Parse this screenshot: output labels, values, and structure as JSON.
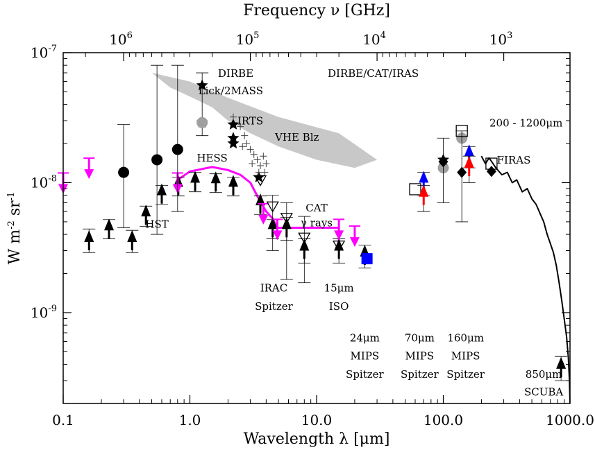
{
  "chart_data": {
    "type": "scatter",
    "title": "",
    "xlabel": "Wavelength λ [μm]",
    "ylabel_parts": [
      "W m",
      "-2",
      " sr",
      "-1"
    ],
    "top_xlabel": "Frequency ν [GHz]",
    "x_scale": "log",
    "y_scale": "log",
    "xlim": [
      0.1,
      1000
    ],
    "ylim": [
      2e-10,
      1e-07
    ],
    "x_ticks": [
      {
        "v": 0.1,
        "label": "0.1"
      },
      {
        "v": 1,
        "label": "1.0"
      },
      {
        "v": 10,
        "label": "10.0"
      },
      {
        "v": 100,
        "label": "100.0"
      },
      {
        "v": 1000,
        "label": "1000.0"
      }
    ],
    "y_ticks": [
      {
        "v": 1e-09,
        "base": "10",
        "exp": "-9"
      },
      {
        "v": 1e-08,
        "base": "10",
        "exp": "-8"
      },
      {
        "v": 1e-07,
        "base": "10",
        "exp": "-7"
      }
    ],
    "top_ticks": [
      {
        "wl": 0.3,
        "base": "10",
        "exp": "6"
      },
      {
        "wl": 3,
        "base": "10",
        "exp": "5"
      },
      {
        "wl": 30,
        "base": "10",
        "exp": "4"
      },
      {
        "wl": 300,
        "base": "10",
        "exp": "3"
      }
    ],
    "vhe_band": [
      [
        0.5,
        7e-08
      ],
      [
        1.0,
        6e-08
      ],
      [
        2.0,
        4.5e-08
      ],
      [
        5.0,
        3.2e-08
      ],
      [
        15.0,
        2.4e-08
      ],
      [
        30.0,
        1.5e-08
      ],
      [
        20.0,
        1.3e-08
      ],
      [
        10.0,
        1.5e-08
      ],
      [
        5.0,
        1.9e-08
      ],
      [
        3.0,
        2.4e-08
      ],
      [
        2.0,
        3e-08
      ],
      [
        1.5,
        3.8e-08
      ],
      [
        1.0,
        4.6e-08
      ],
      [
        0.7,
        5.4e-08
      ]
    ],
    "series": [
      {
        "marker": "arrow-up",
        "color": "#000000",
        "points": [
          {
            "x": 0.16,
            "y": 3.5e-09,
            "ylo": 2.9e-09,
            "yhi": 4.4e-09
          },
          {
            "x": 0.23,
            "y": 4.3e-09,
            "ylo": 3.7e-09,
            "yhi": 5.2e-09
          },
          {
            "x": 0.35,
            "y": 3.5e-09,
            "ylo": 2.9e-09,
            "yhi": 4.3e-09
          },
          {
            "x": 0.45,
            "y": 5.5e-09,
            "ylo": 4.6e-09,
            "yhi": 6.6e-09
          },
          {
            "x": 0.6,
            "y": 8e-09,
            "ylo": 6.8e-09,
            "yhi": 9.5e-09
          },
          {
            "x": 0.81,
            "y": 9.3e-09,
            "ylo": 7.9e-09,
            "yhi": 1.1e-08
          },
          {
            "x": 1.1,
            "y": 1e-08,
            "ylo": 8.5e-09,
            "yhi": 1.2e-08
          },
          {
            "x": 1.6,
            "y": 9.9e-09,
            "ylo": 8.4e-09,
            "yhi": 1.17e-08
          },
          {
            "x": 2.2,
            "y": 9.3e-09,
            "ylo": 7.9e-09,
            "yhi": 1.1e-08
          },
          {
            "x": 3.6,
            "y": 6.7e-09,
            "ylo": 5.7e-09,
            "yhi": 7.9e-09
          },
          {
            "x": 4.5,
            "y": 4.4e-09,
            "ylo": 3.7e-09,
            "yhi": 5.2e-09
          },
          {
            "x": 5.8,
            "y": 4.4e-09,
            "ylo": 3.6e-09,
            "yhi": 5.4e-09
          },
          {
            "x": 8.0,
            "y": 3e-09,
            "ylo": 2.4e-09,
            "yhi": 3.7e-09
          },
          {
            "x": 15.0,
            "y": 3e-09,
            "ylo": 2.4e-09,
            "yhi": 3.7e-09
          },
          {
            "x": 24.0,
            "y": 2.7e-09,
            "ylo": 2.2e-09,
            "yhi": 3.3e-09
          },
          {
            "x": 850.0,
            "y": 3.7e-10,
            "ylo": 3e-10,
            "yhi": 4.6e-10
          }
        ]
      },
      {
        "marker": "arrow-down",
        "color": "#ff00ff",
        "points": [
          {
            "x": 0.1,
            "y": 1e-08
          },
          {
            "x": 0.16,
            "y": 1.3e-08
          },
          {
            "x": 0.8,
            "y": 1e-08
          },
          {
            "x": 3.8,
            "y": 5.8e-09
          },
          {
            "x": 4.9,
            "y": 4.4e-09
          },
          {
            "x": 15.0,
            "y": 4.4e-09
          },
          {
            "x": 20.0,
            "y": 3.9e-09
          }
        ]
      },
      {
        "marker": "circle",
        "color": "#000000",
        "points": [
          {
            "x": 0.3,
            "y": 1.2e-08,
            "ylo": 4.5e-09,
            "yhi": 2.8e-08
          },
          {
            "x": 0.55,
            "y": 1.5e-08,
            "ylo": 4e-09,
            "yhi": 8e-08
          },
          {
            "x": 0.8,
            "y": 1.8e-08,
            "ylo": 6e-09,
            "yhi": 8e-08
          }
        ]
      },
      {
        "marker": "star",
        "color": "#000000",
        "points": [
          {
            "x": 1.25,
            "y": 5.6e-08,
            "ylo": 2.3e-08,
            "yhi": 7e-08
          },
          {
            "x": 1.25,
            "y": 2.9e-08
          },
          {
            "x": 2.2,
            "y": 2.8e-08
          },
          {
            "x": 2.2,
            "y": 2.2e-08
          },
          {
            "x": 2.2,
            "y": 2e-08
          },
          {
            "x": 3.5,
            "y": 1.1e-08
          }
        ]
      },
      {
        "marker": "grey-circle",
        "color": "#a0a0a0",
        "points": [
          {
            "x": 1.25,
            "y": 2.9e-08
          },
          {
            "x": 140.0,
            "y": 2.2e-08
          },
          {
            "x": 100.0,
            "y": 1.3e-08
          }
        ]
      },
      {
        "marker": "plus",
        "color": "#404040",
        "points": [
          {
            "x": 2.2,
            "y": 3.2e-08
          },
          {
            "x": 2.5,
            "y": 2.7e-08
          },
          {
            "x": 2.7,
            "y": 2.3e-08
          },
          {
            "x": 2.8,
            "y": 2e-08
          },
          {
            "x": 3.0,
            "y": 1.8e-08
          },
          {
            "x": 3.2,
            "y": 1.65e-08
          },
          {
            "x": 3.4,
            "y": 1.5e-08
          },
          {
            "x": 3.6,
            "y": 1.35e-08
          },
          {
            "x": 3.8,
            "y": 1.6e-08
          },
          {
            "x": 4.0,
            "y": 1.4e-08
          },
          {
            "x": 2.6,
            "y": 1.9e-08
          },
          {
            "x": 3.1,
            "y": 1.4e-08
          },
          {
            "x": 3.5,
            "y": 1.2e-08
          },
          {
            "x": 3.9,
            "y": 1.2e-08
          }
        ]
      },
      {
        "marker": "triangle-down-open",
        "color": "#000000",
        "points": [
          {
            "x": 3.6,
            "y": 1.05e-08
          },
          {
            "x": 4.5,
            "y": 6.6e-09,
            "ylo": 3e-09,
            "yhi": 8e-09
          },
          {
            "x": 5.8,
            "y": 5.4e-09,
            "ylo": 1.8e-09,
            "yhi": 7e-09
          },
          {
            "x": 8.0,
            "y": 3.8e-09,
            "ylo": 1.7e-09,
            "yhi": 5.5e-09
          },
          {
            "x": 15.0,
            "y": 3.3e-09
          }
        ]
      },
      {
        "marker": "square-blue",
        "color": "#0000ff",
        "points": [
          {
            "x": 25.0,
            "y": 2.6e-09
          }
        ]
      },
      {
        "marker": "square-open",
        "color": "#000000",
        "points": [
          {
            "x": 60.0,
            "y": 8.9e-09
          },
          {
            "x": 140.0,
            "y": 2.5e-08
          },
          {
            "x": 240.0,
            "y": 1.4e-08
          }
        ]
      },
      {
        "marker": "arrow-up",
        "color": "#0000ff",
        "points": [
          {
            "x": 70.0,
            "y": 1e-08,
            "ylo": 8e-09,
            "yhi": 1.2e-08
          },
          {
            "x": 160.0,
            "y": 1.6e-08,
            "ylo": 1.3e-08,
            "yhi": 1.9e-08
          }
        ]
      },
      {
        "marker": "arrow-up",
        "color": "#ff0000",
        "points": [
          {
            "x": 70.0,
            "y": 7.8e-09,
            "ylo": 6e-09,
            "yhi": 9.5e-09
          },
          {
            "x": 160.0,
            "y": 1.3e-08,
            "ylo": 1e-08,
            "yhi": 1.6e-08
          }
        ]
      },
      {
        "marker": "star",
        "color": "#000000",
        "points": [
          {
            "x": 100.0,
            "y": 1.5e-08,
            "ylo": 7e-09,
            "yhi": 2.2e-08
          }
        ]
      },
      {
        "marker": "diamond",
        "color": "#000000",
        "points": [
          {
            "x": 100.0,
            "y": 1.45e-08
          },
          {
            "x": 140.0,
            "y": 1.2e-08,
            "ylo": 5e-09,
            "yhi": 2.5e-08
          },
          {
            "x": 240.0,
            "y": 1.22e-08
          }
        ]
      }
    ],
    "cat_line": {
      "color": "#ff00ff",
      "points": [
        [
          0.8,
          1.05e-08
        ],
        [
          1.0,
          1.22e-08
        ],
        [
          1.5,
          1.32e-08
        ],
        [
          2.0,
          1.25e-08
        ],
        [
          2.5,
          1.15e-08
        ],
        [
          3.0,
          1e-08
        ],
        [
          3.5,
          7.5e-09
        ],
        [
          4.0,
          6e-09
        ],
        [
          4.5,
          5.3e-09
        ],
        [
          4.9,
          4.5e-09
        ],
        [
          5.0,
          4.5e-09
        ],
        [
          15.0,
          4.5e-09
        ],
        [
          15.0,
          3.3e-09
        ]
      ]
    },
    "firas_line": {
      "color": "#000000",
      "points": [
        [
          200,
          1.6e-08
        ],
        [
          215,
          1.4e-08
        ],
        [
          230,
          1.55e-08
        ],
        [
          260,
          1.3e-08
        ],
        [
          290,
          1.15e-08
        ],
        [
          320,
          1.2e-08
        ],
        [
          350,
          1e-08
        ],
        [
          380,
          1.05e-08
        ],
        [
          420,
          8.5e-09
        ],
        [
          460,
          9e-09
        ],
        [
          500,
          7.5e-09
        ],
        [
          540,
          6.8e-09
        ],
        [
          580,
          5.8e-09
        ],
        [
          620,
          5e-09
        ],
        [
          660,
          4e-09
        ],
        [
          700,
          3.4e-09
        ],
        [
          740,
          2.9e-09
        ],
        [
          780,
          2.3e-09
        ],
        [
          820,
          1.7e-09
        ],
        [
          860,
          1.25e-09
        ],
        [
          900,
          9e-10
        ],
        [
          940,
          6.5e-10
        ],
        [
          970,
          4.5e-10
        ],
        [
          990,
          3e-10
        ],
        [
          1000,
          2e-10
        ]
      ]
    },
    "annotations": [
      {
        "text": "DIRBE",
        "x": 2.3,
        "y": 6.5e-08
      },
      {
        "text": "Lick/2MASS",
        "x": 2.1,
        "y": 4.8e-08
      },
      {
        "text": "IRTS",
        "x": 3.0,
        "y": 2.8e-08
      },
      {
        "text": "VHE Blz",
        "x": 7.0,
        "y": 2.1e-08
      },
      {
        "text": "HESS",
        "x": 1.5,
        "y": 1.45e-08
      },
      {
        "text": "HST",
        "x": 0.55,
        "y": 4.5e-09
      },
      {
        "text": "CAT",
        "x": 10.0,
        "y": 6e-09
      },
      {
        "text": "γ rays",
        "x": 10.0,
        "y": 4.6e-09
      },
      {
        "text": "DIRBE/CAT/IRAS",
        "x": 28.0,
        "y": 6.5e-08
      },
      {
        "text": "200 - 1200μm",
        "x": 450.0,
        "y": 2.7e-08
      },
      {
        "text": "FIRAS",
        "x": 360.0,
        "y": 1.4e-08
      },
      {
        "text": "IRAC",
        "x": 4.6,
        "y": 1.45e-09
      },
      {
        "text": "Spitzer",
        "x": 4.6,
        "y": 1.05e-09
      },
      {
        "text": "15μm",
        "x": 15.0,
        "y": 1.45e-09
      },
      {
        "text": "ISO",
        "x": 15.0,
        "y": 1.05e-09
      },
      {
        "text": "24μm",
        "x": 24.0,
        "y": 6e-10
      },
      {
        "text": "MIPS",
        "x": 24.0,
        "y": 4.35e-10
      },
      {
        "text": "Spitzer",
        "x": 24.0,
        "y": 3.15e-10
      },
      {
        "text": "70μm",
        "x": 65.0,
        "y": 6e-10
      },
      {
        "text": "MIPS",
        "x": 65.0,
        "y": 4.35e-10
      },
      {
        "text": "Spitzer",
        "x": 65.0,
        "y": 3.15e-10
      },
      {
        "text": "160μm",
        "x": 150.0,
        "y": 6e-10
      },
      {
        "text": "MIPS",
        "x": 150.0,
        "y": 4.35e-10
      },
      {
        "text": "Spitzer",
        "x": 150.0,
        "y": 3.15e-10
      },
      {
        "text": "850μm",
        "x": 620.0,
        "y": 3.15e-10
      },
      {
        "text": "SCUBA",
        "x": 620.0,
        "y": 2.3e-10
      }
    ]
  }
}
